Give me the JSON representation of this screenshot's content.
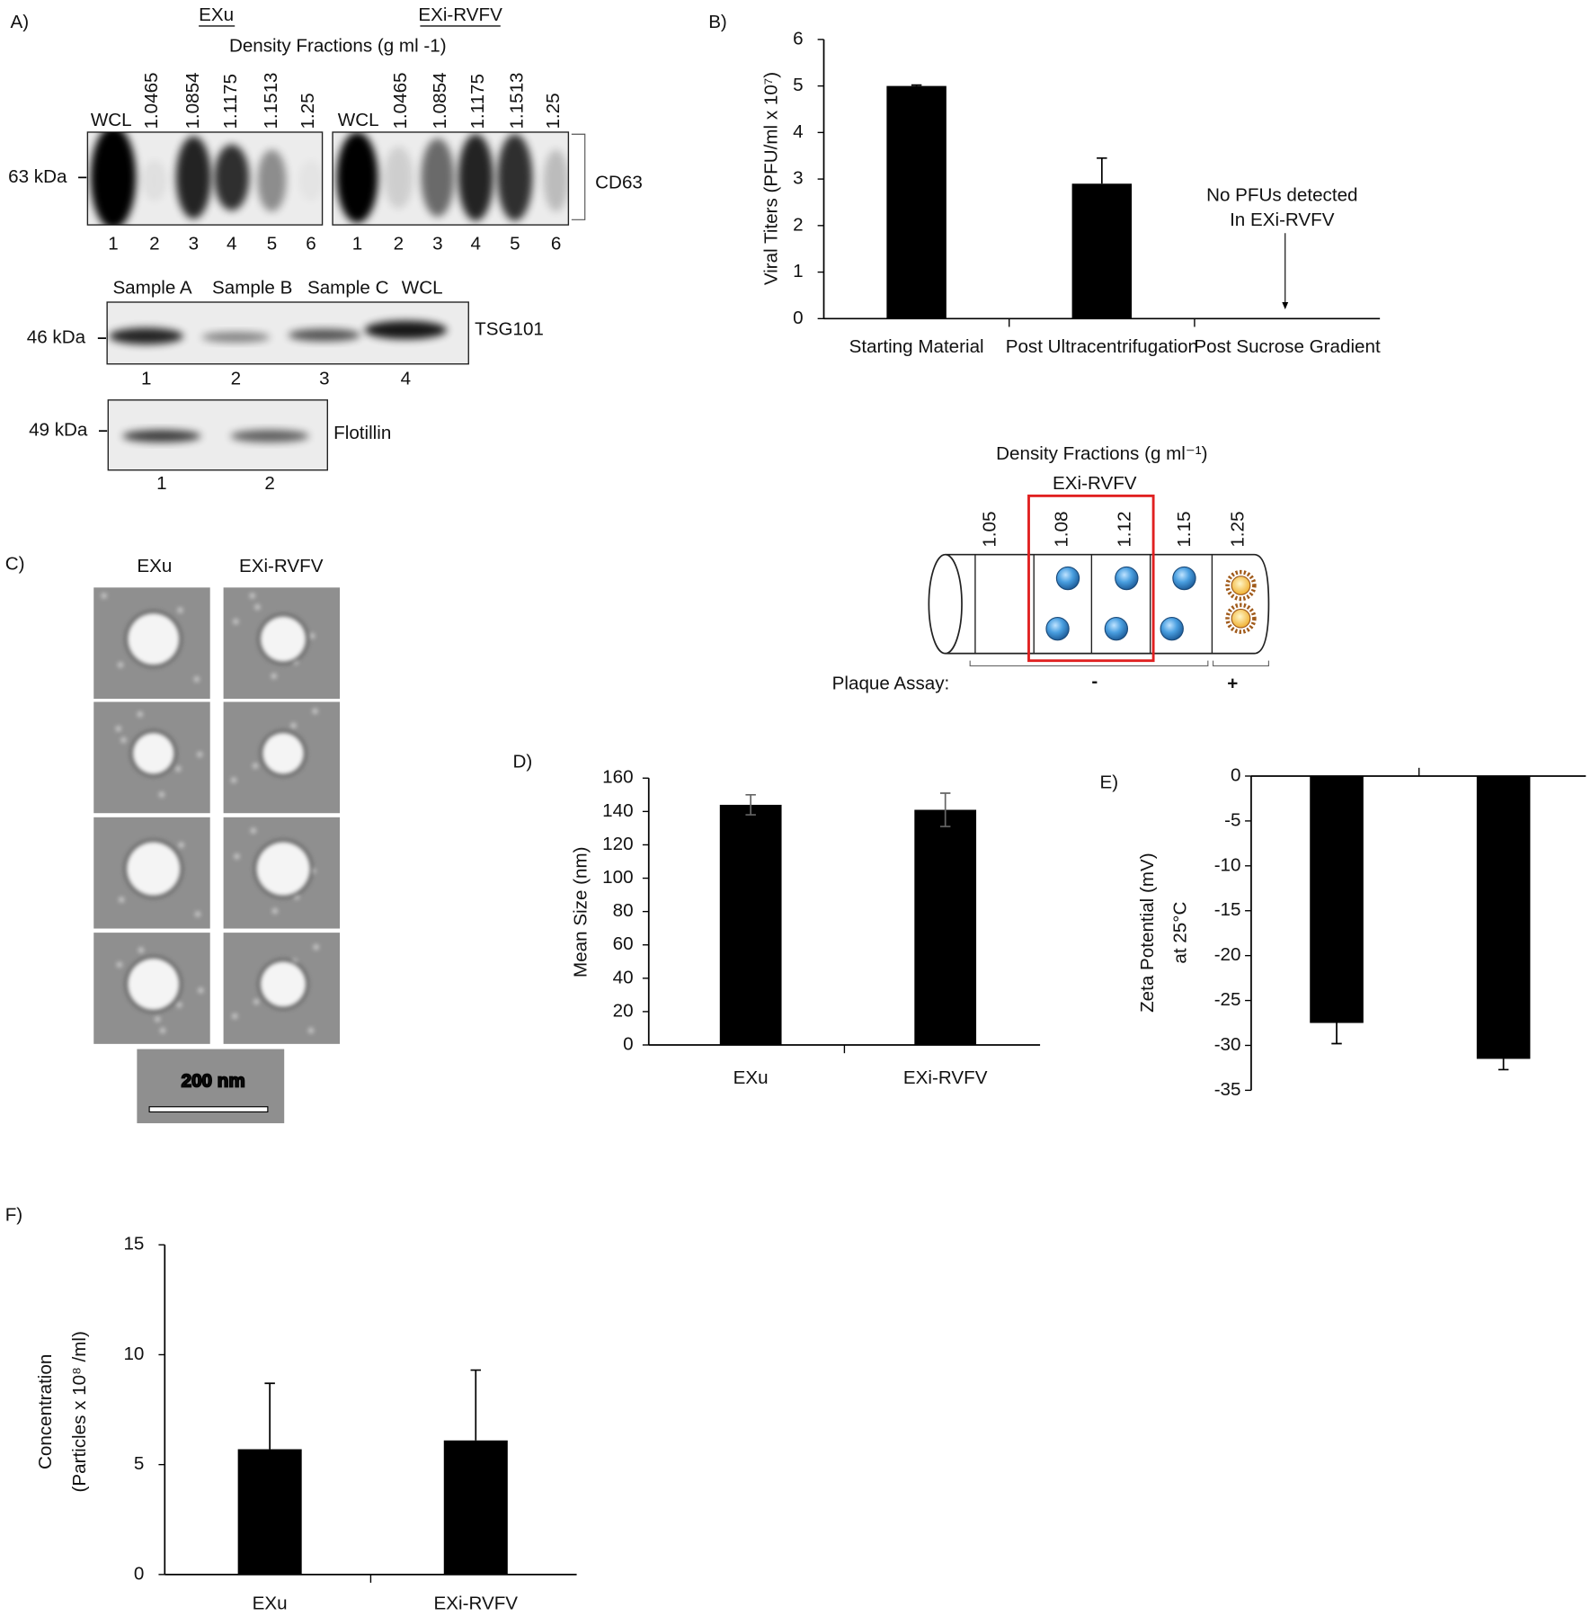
{
  "chart_data": [
    {
      "type": "bar",
      "panel_label": "B)",
      "ylabel": [
        "Viral Titers (PFU/ml x 10⁷)"
      ],
      "categories": [
        "Starting Material",
        "Post Ultracentrifugation",
        "Post Sucrose Gradient"
      ],
      "values": [
        5,
        2.9,
        0
      ],
      "errors": [
        0.02,
        0.55,
        null
      ],
      "color": "#000000",
      "ylim": [
        0,
        6
      ],
      "yticks": [
        0,
        1,
        2,
        3,
        4,
        5,
        6
      ],
      "annotations": [
        "No PFUs detected",
        "In EXi-RVFV"
      ]
    },
    {
      "type": "bar",
      "panel_label": "D)",
      "ylabel": [
        "Mean Size (nm)"
      ],
      "categories": [
        "EXu",
        "EXi-RVFV"
      ],
      "values": [
        144,
        141
      ],
      "errors": [
        6,
        10
      ],
      "color": "#000000",
      "ylim": [
        0,
        160
      ],
      "yticks": [
        0,
        20,
        40,
        60,
        80,
        100,
        120,
        140,
        160
      ]
    },
    {
      "type": "bar",
      "panel_label": "E)",
      "ylabel": [
        "Zeta Potential (mV)",
        "at 25°C"
      ],
      "values": [
        -27.5,
        -31.5
      ],
      "errors": [
        2.3,
        1.2
      ],
      "color": "#000000",
      "ylim": [
        -35,
        0
      ],
      "yticks": [
        0,
        -5,
        -10,
        -15,
        -20,
        -25,
        -30,
        -35
      ]
    },
    {
      "type": "bar",
      "panel_label": "F)",
      "ylabel": [
        "Concentration",
        "(Particles x 10⁸ /ml)"
      ],
      "categories": [
        "EXu",
        "EXi-RVFV"
      ],
      "values": [
        5.7,
        6.1
      ],
      "errors": [
        3.0,
        3.2
      ],
      "color": "#000000",
      "ylim": [
        0,
        15
      ],
      "yticks": [
        0,
        5,
        10,
        15
      ]
    }
  ],
  "blots": {
    "panel_label": "A)",
    "groups": [
      "EXu",
      "EXi-RVFV"
    ],
    "density_title": "Density Fractions (g ml -1)",
    "cd63": {
      "lane_labels": [
        "WCL",
        "1.0465",
        "1.0854",
        "1.1175",
        "1.1513",
        "1.25"
      ],
      "lane_numbers": [
        "1",
        "2",
        "3",
        "4",
        "5",
        "6"
      ],
      "marker": "63 kDa",
      "protein": "CD63"
    },
    "tsg101": {
      "lane_labels": [
        "Sample A",
        "Sample B",
        "Sample C",
        "WCL"
      ],
      "lane_numbers": [
        "1",
        "2",
        "3",
        "4"
      ],
      "marker": "46 kDa",
      "protein": "TSG101"
    },
    "flotillin": {
      "lane_numbers": [
        "1",
        "2"
      ],
      "marker": "49 kDa",
      "protein": "Flotillin"
    }
  },
  "micrographs": {
    "panel_label": "C)",
    "columns": [
      "EXu",
      "EXi-RVFV"
    ],
    "scale_bar": "200 nm"
  },
  "gradient_diagram": {
    "title": "Density Fractions (g ml⁻¹)",
    "sample": "EXi-RVFV",
    "fractions": [
      "1.05",
      "1.08",
      "1.12",
      "1.15",
      "1.25"
    ],
    "assay_label": "Plaque Assay:",
    "results": [
      "-",
      "+"
    ]
  }
}
